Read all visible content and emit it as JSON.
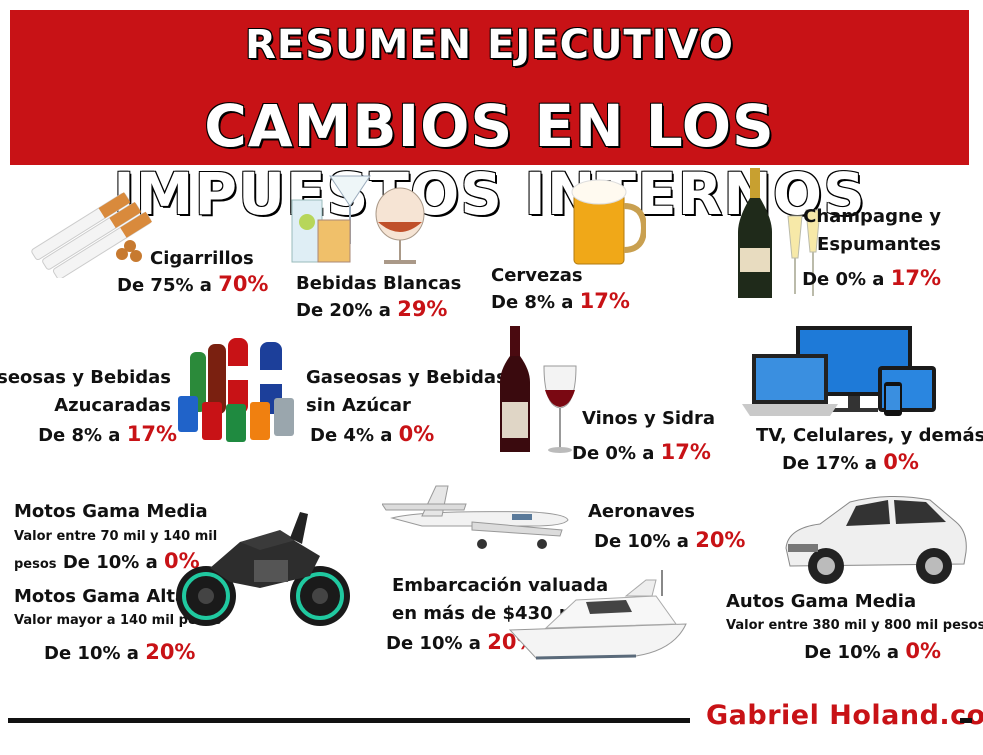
{
  "header": {
    "title": "Resumen Ejecutivo",
    "subtitle": "Cambios en los Impuestos Internos"
  },
  "items": {
    "cigarrillos": {
      "name": "Cigarrillos",
      "from": "De 75% a",
      "to": "70%"
    },
    "bebidas_blancas": {
      "name": "Bebidas Blancas",
      "from": "De 20% a",
      "to": "29%"
    },
    "cervezas": {
      "name": "Cervezas",
      "from": "De 8% a",
      "to": "17%"
    },
    "champagne": {
      "name_line1": "Champagne y",
      "name_line2": "Espumantes",
      "from": "De 0% a",
      "to": "17%"
    },
    "gaseosas_azucaradas": {
      "name_line1": "Gaseosas y Bebidas",
      "name_line2": "Azucaradas",
      "from": "De 8% a",
      "to": "17%"
    },
    "gaseosas_sin_azucar": {
      "name_line1": "Gaseosas y Bebidas",
      "name_line2": "sin Azúcar",
      "from": "De 4% a",
      "to": "0%"
    },
    "vinos": {
      "name": "Vinos y Sidra",
      "from": "De 0% a",
      "to": "17%"
    },
    "tv": {
      "name": "TV, Celulares, y demás",
      "from": "De 17% a",
      "to": "0%"
    },
    "motos_media": {
      "name": "Motos Gama Media",
      "detail_line1": "Valor entre 70 mil y 140 mil",
      "detail_line2": "pesos",
      "from": "De 10% a",
      "to": "0%"
    },
    "motos_alta": {
      "name": "Motos Gama Alta",
      "detail": "Valor mayor a 140 mil pesos",
      "from": "De 10% a",
      "to": "20%"
    },
    "aeronaves": {
      "name": "Aeronaves",
      "from": "De 10% a",
      "to": "20%"
    },
    "embarcacion": {
      "name_line1": "Embarcación valuada",
      "name_line2": "en más de $430 mil",
      "from": "De 10% a",
      "to": "20%"
    },
    "autos": {
      "name": "Autos Gama Media",
      "detail": "Valor entre 380 mil y 800 mil pesos",
      "from": "De 10% a",
      "to": "0%"
    }
  },
  "footer": {
    "brand": "Gabriel Holand.com"
  },
  "colors": {
    "accent_red": "#c81216",
    "text_dark": "#111111",
    "background": "#ffffff"
  },
  "icons": [
    "cigarettes-image",
    "spirits-glasses-image",
    "beer-mug-image",
    "champagne-image",
    "soda-bottles-image",
    "wine-image",
    "devices-image",
    "motorcycle-image",
    "airplane-image",
    "yacht-image",
    "car-image"
  ]
}
